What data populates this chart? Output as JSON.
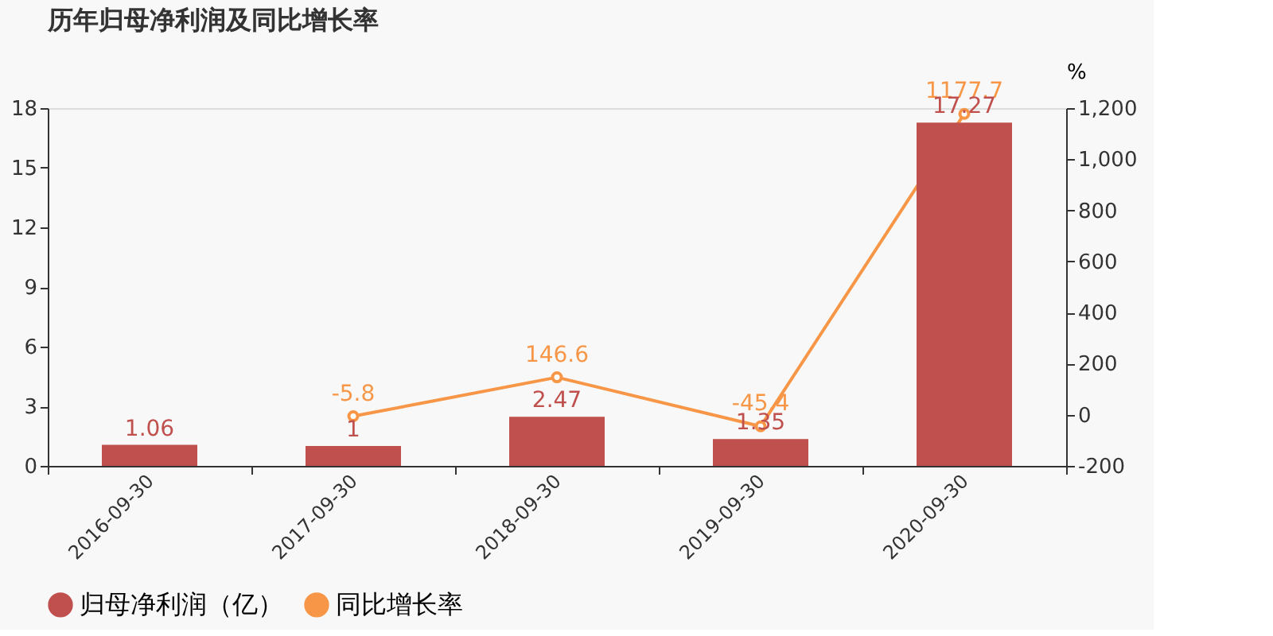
{
  "chart_data": {
    "type": "bar",
    "title": "历年归母净利润及同比增长率",
    "y2label": "%",
    "categories": [
      "2016-09-30",
      "2017-09-30",
      "2018-09-30",
      "2019-09-30",
      "2020-09-30"
    ],
    "series": [
      {
        "name": "归母净利润（亿）",
        "color": "#c0504d",
        "values": [
          1.06,
          1,
          2.47,
          1.35,
          17.27
        ]
      },
      {
        "name": "同比增长率",
        "type": "line",
        "axis": "y2",
        "color": "#f79646",
        "values": [
          null,
          -5.8,
          146.6,
          -45.4,
          1177.7
        ]
      }
    ],
    "ylim": [
      0,
      18
    ],
    "yticks": [
      0,
      3,
      6,
      9,
      12,
      15,
      18
    ],
    "y2lim": [
      -200,
      1200
    ],
    "y2ticks": [
      -200,
      0,
      200,
      400,
      600,
      800,
      {
        "value": 1000,
        "label": "1,000"
      },
      {
        "value": 1200,
        "label": "1,200"
      }
    ],
    "data_labels": true,
    "grid": false,
    "legend": "bottom",
    "marker": "circle"
  }
}
